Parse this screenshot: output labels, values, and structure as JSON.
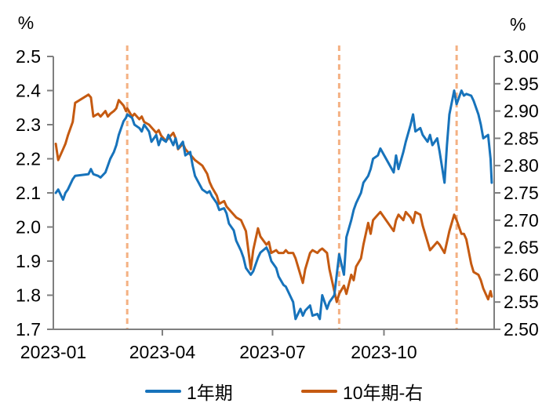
{
  "figure": {
    "background": "#ffffff",
    "axis_color": "#7f7f7f",
    "text_color": "#000000"
  },
  "chart_data": {
    "type": "line",
    "title": "",
    "grid": false,
    "legend_position": "bottom",
    "left_axis": {
      "unit": "%",
      "range": [
        1.7,
        2.5
      ],
      "ticks": [
        "2.5",
        "2.4",
        "2.3",
        "2.2",
        "2.1",
        "2.0",
        "1.9",
        "1.8",
        "1.7"
      ]
    },
    "right_axis": {
      "unit": "%",
      "range": [
        2.5,
        3.0
      ],
      "ticks": [
        "3.00",
        "2.95",
        "2.90",
        "2.85",
        "2.80",
        "2.75",
        "2.70",
        "2.65",
        "2.60",
        "2.55",
        "2.50"
      ]
    },
    "x_axis": {
      "range": [
        "2023-01-01",
        "2023-12-31"
      ],
      "tick_labels": [
        "2023-01",
        "2023-04",
        "2023-07",
        "2023-10"
      ],
      "tick_dates": [
        "2023-01-01",
        "2023-04-01",
        "2023-07-01",
        "2023-10-01"
      ]
    },
    "vlines": {
      "dates": [
        "2023-03-03",
        "2023-08-25",
        "2023-11-30"
      ],
      "color": "#f4b183",
      "style": "dashed"
    },
    "dates": [
      "2023-01-03",
      "2023-01-05",
      "2023-01-09",
      "2023-01-11",
      "2023-01-13",
      "2023-01-17",
      "2023-01-19",
      "2023-01-30",
      "2023-02-01",
      "2023-02-03",
      "2023-02-07",
      "2023-02-09",
      "2023-02-13",
      "2023-02-15",
      "2023-02-17",
      "2023-02-20",
      "2023-02-22",
      "2023-02-24",
      "2023-02-28",
      "2023-03-02",
      "2023-03-03",
      "2023-03-07",
      "2023-03-09",
      "2023-03-13",
      "2023-03-15",
      "2023-03-17",
      "2023-03-21",
      "2023-03-23",
      "2023-03-27",
      "2023-03-29",
      "2023-03-31",
      "2023-04-04",
      "2023-04-06",
      "2023-04-10",
      "2023-04-12",
      "2023-04-14",
      "2023-04-18",
      "2023-04-20",
      "2023-04-24",
      "2023-04-26",
      "2023-04-28",
      "2023-05-04",
      "2023-05-08",
      "2023-05-10",
      "2023-05-12",
      "2023-05-16",
      "2023-05-18",
      "2023-05-22",
      "2023-05-24",
      "2023-05-26",
      "2023-05-30",
      "2023-06-01",
      "2023-06-05",
      "2023-06-07",
      "2023-06-09",
      "2023-06-13",
      "2023-06-15",
      "2023-06-19",
      "2023-06-21",
      "2023-06-26",
      "2023-06-28",
      "2023-06-30",
      "2023-07-04",
      "2023-07-06",
      "2023-07-10",
      "2023-07-12",
      "2023-07-14",
      "2023-07-18",
      "2023-07-20",
      "2023-07-24",
      "2023-07-26",
      "2023-07-28",
      "2023-08-01",
      "2023-08-03",
      "2023-08-07",
      "2023-08-09",
      "2023-08-11",
      "2023-08-15",
      "2023-08-17",
      "2023-08-21",
      "2023-08-23",
      "2023-08-25",
      "2023-08-29",
      "2023-08-31",
      "2023-09-04",
      "2023-09-06",
      "2023-09-08",
      "2023-09-12",
      "2023-09-14",
      "2023-09-18",
      "2023-09-20",
      "2023-09-22",
      "2023-09-26",
      "2023-09-28",
      "2023-10-09",
      "2023-10-11",
      "2023-10-13",
      "2023-10-17",
      "2023-10-19",
      "2023-10-23",
      "2023-10-25",
      "2023-10-27",
      "2023-10-31",
      "2023-11-02",
      "2023-11-06",
      "2023-11-08",
      "2023-11-10",
      "2023-11-14",
      "2023-11-16",
      "2023-11-20",
      "2023-11-22",
      "2023-11-24",
      "2023-11-28",
      "2023-11-30",
      "2023-12-04",
      "2023-12-06",
      "2023-12-08",
      "2023-12-12",
      "2023-12-14",
      "2023-12-18",
      "2023-12-20",
      "2023-12-22",
      "2023-12-26",
      "2023-12-28",
      "2023-12-29"
    ],
    "series": [
      {
        "name": "1年期",
        "axis": "left",
        "color": "#1773bb",
        "values": [
          2.1,
          2.11,
          2.08,
          2.1,
          2.11,
          2.14,
          2.15,
          2.155,
          2.17,
          2.155,
          2.15,
          2.145,
          2.16,
          2.18,
          2.2,
          2.22,
          2.24,
          2.27,
          2.31,
          2.32,
          2.33,
          2.32,
          2.3,
          2.29,
          2.28,
          2.3,
          2.28,
          2.25,
          2.27,
          2.24,
          2.26,
          2.25,
          2.27,
          2.24,
          2.26,
          2.23,
          2.25,
          2.21,
          2.22,
          2.18,
          2.15,
          2.11,
          2.1,
          2.105,
          2.09,
          2.07,
          2.05,
          2.055,
          2.04,
          2.01,
          1.99,
          1.96,
          1.93,
          1.91,
          1.88,
          1.86,
          1.87,
          1.91,
          1.925,
          1.94,
          1.925,
          1.9,
          1.88,
          1.855,
          1.83,
          1.825,
          1.81,
          1.78,
          1.73,
          1.76,
          1.74,
          1.755,
          1.77,
          1.74,
          1.745,
          1.73,
          1.8,
          1.76,
          1.78,
          1.8,
          1.86,
          1.92,
          1.86,
          1.97,
          2.02,
          2.05,
          2.07,
          2.1,
          2.13,
          2.15,
          2.17,
          2.2,
          2.21,
          2.23,
          2.16,
          2.21,
          2.17,
          2.22,
          2.25,
          2.3,
          2.33,
          2.28,
          2.29,
          2.27,
          2.25,
          2.27,
          2.24,
          2.26,
          2.22,
          2.13,
          2.24,
          2.33,
          2.4,
          2.36,
          2.4,
          2.385,
          2.39,
          2.385,
          2.37,
          2.33,
          2.3,
          2.26,
          2.27,
          2.2,
          2.13
        ]
      },
      {
        "name": "10年期-右",
        "axis": "right",
        "color": "#c55a11",
        "values": [
          2.84,
          2.81,
          2.83,
          2.84,
          2.855,
          2.88,
          2.915,
          2.93,
          2.925,
          2.89,
          2.895,
          2.89,
          2.9,
          2.89,
          2.895,
          2.9,
          2.905,
          2.92,
          2.91,
          2.9,
          2.905,
          2.89,
          2.895,
          2.885,
          2.89,
          2.88,
          2.875,
          2.87,
          2.86,
          2.865,
          2.855,
          2.845,
          2.85,
          2.86,
          2.85,
          2.83,
          2.84,
          2.83,
          2.82,
          2.815,
          2.81,
          2.8,
          2.785,
          2.77,
          2.76,
          2.745,
          2.73,
          2.735,
          2.725,
          2.72,
          2.71,
          2.705,
          2.7,
          2.69,
          2.68,
          2.61,
          2.645,
          2.685,
          2.67,
          2.655,
          2.66,
          2.64,
          2.645,
          2.64,
          2.64,
          2.645,
          2.64,
          2.64,
          2.63,
          2.6,
          2.585,
          2.61,
          2.64,
          2.645,
          2.64,
          2.645,
          2.648,
          2.64,
          2.61,
          2.57,
          2.55,
          2.565,
          2.58,
          2.565,
          2.6,
          2.59,
          2.615,
          2.63,
          2.655,
          2.695,
          2.675,
          2.7,
          2.71,
          2.715,
          2.68,
          2.7,
          2.71,
          2.7,
          2.715,
          2.705,
          2.695,
          2.715,
          2.71,
          2.69,
          2.66,
          2.645,
          2.65,
          2.66,
          2.655,
          2.64,
          2.66,
          2.68,
          2.71,
          2.7,
          2.675,
          2.675,
          2.665,
          2.62,
          2.605,
          2.6,
          2.59,
          2.575,
          2.555,
          2.57,
          2.56
        ]
      }
    ]
  },
  "legend": {
    "items": [
      {
        "label": "1年期",
        "color": "#1773bb"
      },
      {
        "label": "10年期-右",
        "color": "#c55a11"
      }
    ]
  }
}
